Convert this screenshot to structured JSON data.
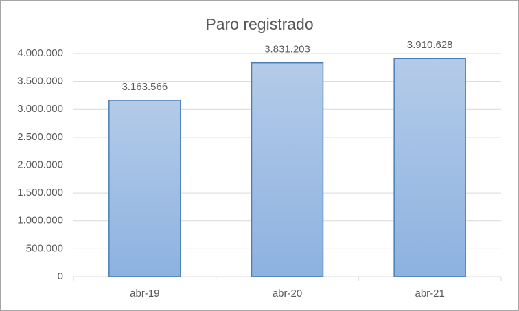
{
  "chart_data": {
    "type": "bar",
    "title": "Paro registrado",
    "categories": [
      "abr-19",
      "abr-20",
      "abr-21"
    ],
    "values": [
      3163566,
      3831203,
      3910628
    ],
    "value_labels": [
      "3.163.566",
      "3.831.203",
      "3.910.628"
    ],
    "color": "#9dbde6",
    "ylim": [
      0,
      4000000
    ],
    "yticks": [
      0,
      {
        "value": 500000,
        "label": "500.000"
      },
      {
        "value": 1000000,
        "label": "1.000.000"
      },
      {
        "value": 1500000,
        "label": "1.500.000"
      },
      {
        "value": 2000000,
        "label": "2.000.000"
      },
      {
        "value": 2500000,
        "label": "2.500.000"
      },
      {
        "value": 3000000,
        "label": "3.000.000"
      },
      {
        "value": 3500000,
        "label": "3.500.000"
      },
      {
        "value": 4000000,
        "label": "4.000.000"
      }
    ],
    "grid": true
  }
}
